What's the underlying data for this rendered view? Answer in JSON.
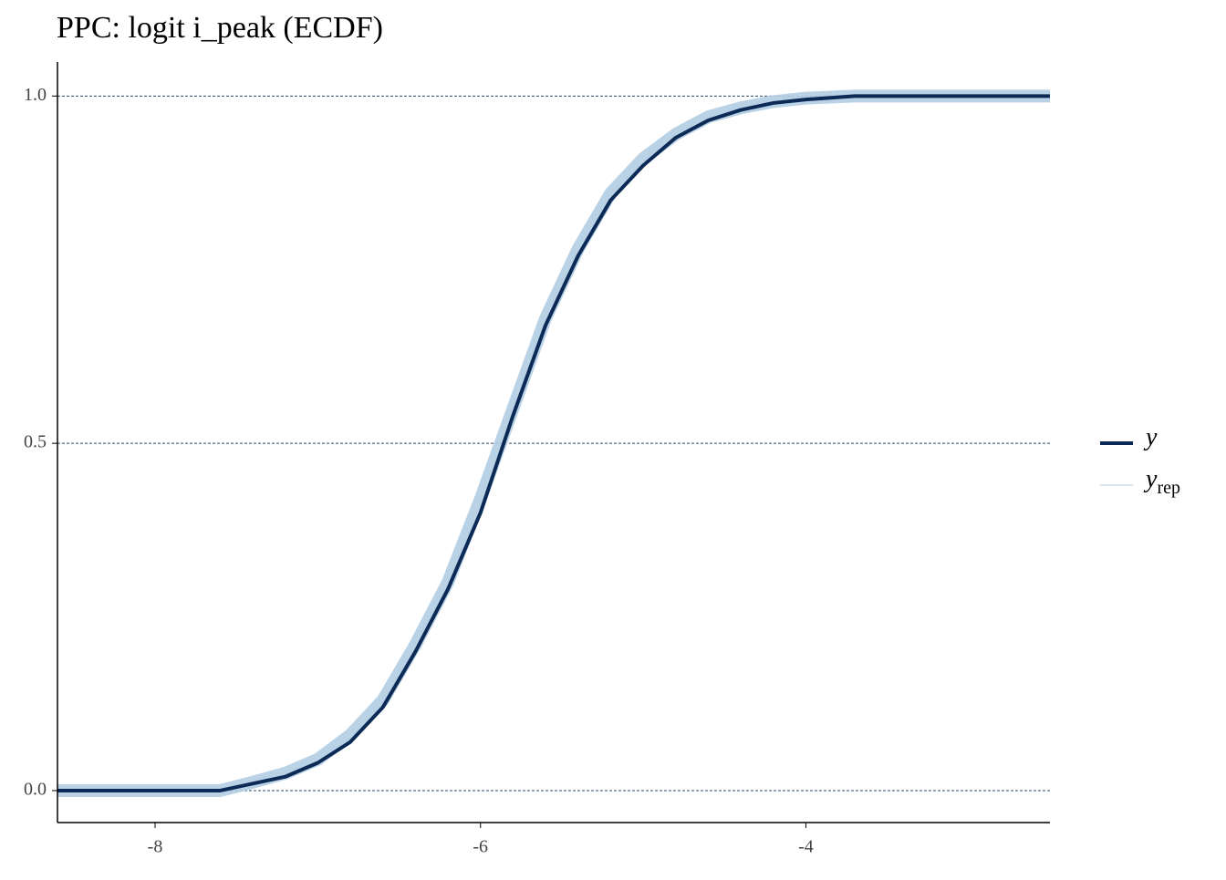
{
  "chart_data": {
    "type": "line",
    "title": "PPC: logit i_peak (ECDF)",
    "x": [
      -8.6,
      -7.6,
      -7.4,
      -7.2,
      -7.0,
      -6.8,
      -6.6,
      -6.4,
      -6.2,
      -6.0,
      -5.8,
      -5.6,
      -5.4,
      -5.2,
      -5.0,
      -4.8,
      -4.6,
      -4.4,
      -4.2,
      -4.0,
      -3.7,
      -2.5
    ],
    "series": [
      {
        "name": "y",
        "color": "#0b2a55",
        "values": [
          0,
          0,
          0.01,
          0.02,
          0.04,
          0.07,
          0.12,
          0.2,
          0.29,
          0.4,
          0.54,
          0.67,
          0.77,
          0.85,
          0.9,
          0.94,
          0.965,
          0.98,
          0.99,
          0.995,
          1,
          1
        ]
      },
      {
        "name": "y",
        "subscript": "rep",
        "color": "#b3cde3",
        "values": [
          0,
          0,
          0.012,
          0.025,
          0.045,
          0.08,
          0.13,
          0.21,
          0.3,
          0.42,
          0.55,
          0.68,
          0.78,
          0.86,
          0.91,
          0.945,
          0.97,
          0.983,
          0.992,
          0.997,
          1,
          1
        ]
      }
    ],
    "xlim": [
      -8.6,
      -2.5
    ],
    "ylim": [
      -0.046,
      1.049
    ],
    "xticks": [
      -8,
      -6,
      -4
    ],
    "yticks": [
      {
        "value": 0,
        "label": "0.0"
      },
      {
        "value": 0.5,
        "label": "0.5"
      },
      {
        "value": 1,
        "label": "1.0"
      }
    ],
    "grid": true,
    "legend": "right"
  }
}
